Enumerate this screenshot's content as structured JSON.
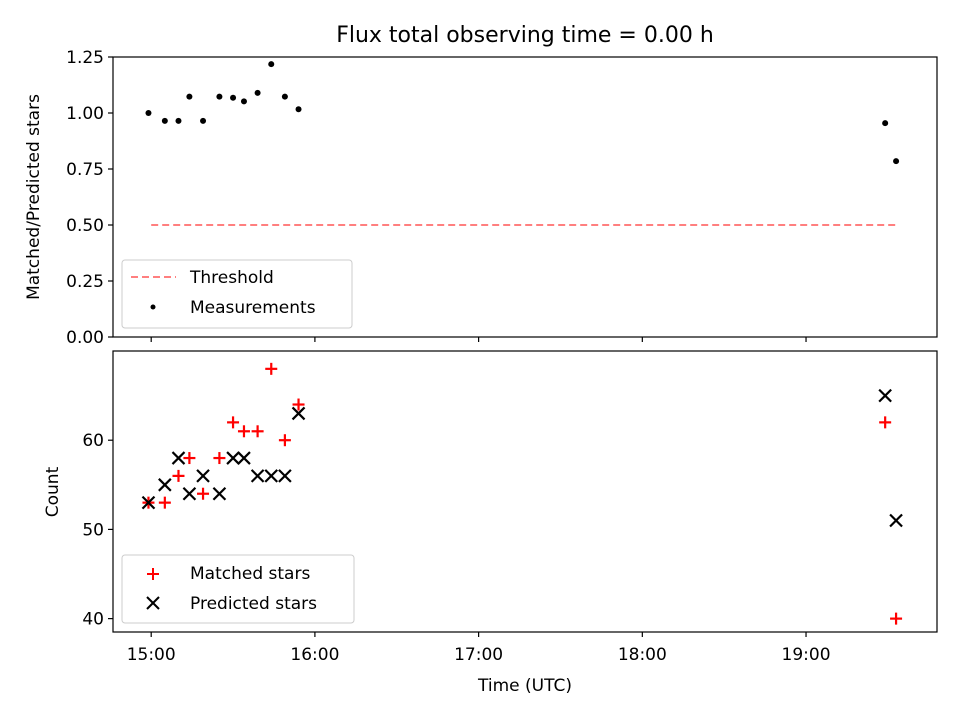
{
  "chart_data": [
    {
      "type": "scatter",
      "title": "Flux total observing time = 0.00 h",
      "xlabel": "",
      "ylabel": "Matched/Predicted stars",
      "xlim": [
        "14:46",
        "19:48"
      ],
      "ylim": [
        0,
        1.25
      ],
      "x_ticks": [
        "15:00",
        "16:00",
        "17:00",
        "18:00",
        "19:00"
      ],
      "y_ticks": [
        "0.00",
        "0.25",
        "0.50",
        "0.75",
        "1.00",
        "1.25"
      ],
      "grid": false,
      "legend": "lower-left",
      "threshold": {
        "name": "Threshold",
        "value": 0.5,
        "x": [
          "15:00",
          "19:34"
        ],
        "color": "#ff7f7f",
        "style": "dashed"
      },
      "series": [
        {
          "name": "Measurements",
          "marker": "dot",
          "color": "#000000",
          "x": [
            "14:59",
            "15:05",
            "15:10",
            "15:14",
            "15:19",
            "15:25",
            "15:30",
            "15:34",
            "15:39",
            "15:44",
            "15:49",
            "15:54",
            "19:29",
            "19:33"
          ],
          "y": [
            1.0,
            0.965,
            0.965,
            1.073,
            0.965,
            1.073,
            1.068,
            1.052,
            1.09,
            1.218,
            1.073,
            1.017,
            0.955,
            0.785
          ]
        }
      ]
    },
    {
      "type": "scatter",
      "title": "",
      "xlabel": "Time (UTC)",
      "ylabel": "Count",
      "xlim": [
        "14:46",
        "19:48"
      ],
      "ylim": [
        38.5,
        70
      ],
      "x_ticks": [
        "15:00",
        "16:00",
        "17:00",
        "18:00",
        "19:00"
      ],
      "y_ticks": [
        "40",
        "50",
        "60"
      ],
      "grid": false,
      "legend": "lower-left",
      "series": [
        {
          "name": "Matched stars",
          "marker": "plus",
          "color": "#ff0000",
          "x": [
            "14:59",
            "15:05",
            "15:10",
            "15:14",
            "15:19",
            "15:25",
            "15:30",
            "15:34",
            "15:39",
            "15:44",
            "15:49",
            "15:54",
            "19:29",
            "19:33"
          ],
          "y": [
            53,
            53,
            56,
            58,
            54,
            58,
            62,
            61,
            61,
            68,
            60,
            64,
            62,
            40
          ]
        },
        {
          "name": "Predicted stars",
          "marker": "x",
          "color": "#000000",
          "x": [
            "14:59",
            "15:05",
            "15:10",
            "15:14",
            "15:19",
            "15:25",
            "15:30",
            "15:34",
            "15:39",
            "15:44",
            "15:49",
            "15:54",
            "19:29",
            "19:33"
          ],
          "y": [
            53,
            55,
            58,
            54,
            56,
            54,
            58,
            58,
            56,
            56,
            56,
            63,
            65,
            51
          ]
        }
      ]
    }
  ]
}
